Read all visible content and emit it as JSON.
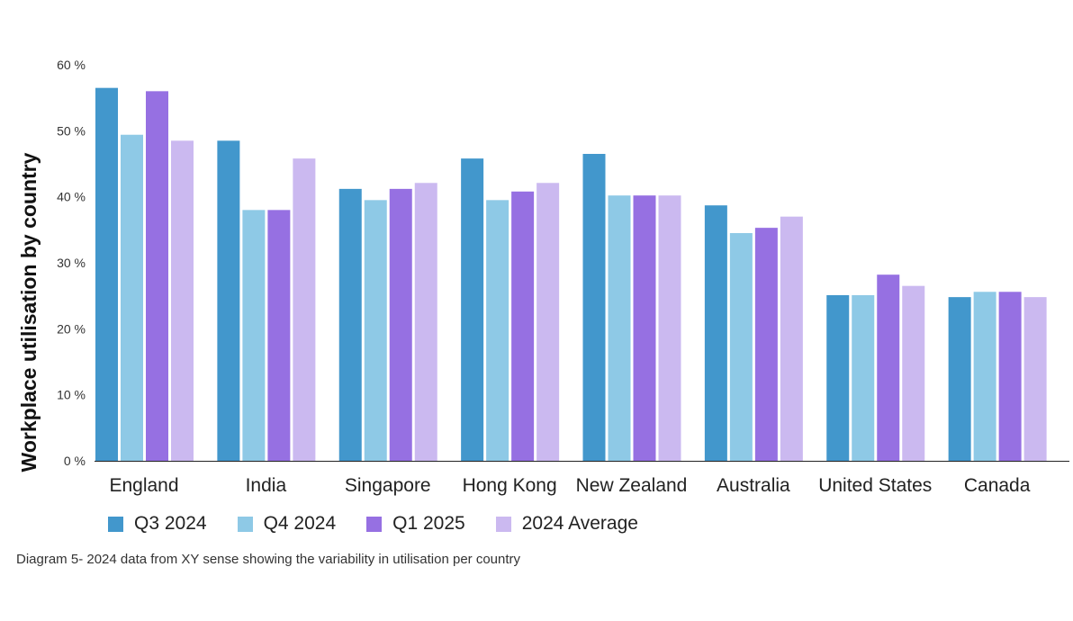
{
  "chart_data": {
    "type": "bar",
    "ylabel": "Workplace utilisation by country",
    "ylim": [
      0,
      60
    ],
    "yticks": [
      "0 %",
      "10 %",
      "20 %",
      "30 %",
      "40 %",
      "50 %",
      "60 %"
    ],
    "categories": [
      "England",
      "India",
      "Singapore",
      "Hong Kong",
      "New Zealand",
      "Australia",
      "United States",
      "Canada"
    ],
    "series": [
      {
        "name": "Q3 2024",
        "color": "#4297cc",
        "values": [
          56.5,
          48.5,
          41.2,
          45.8,
          46.5,
          38.7,
          25.1,
          24.8
        ]
      },
      {
        "name": "Q4 2024",
        "color": "#8ec9e6",
        "values": [
          49.4,
          38.0,
          39.5,
          39.5,
          40.2,
          34.5,
          25.1,
          25.6
        ]
      },
      {
        "name": "Q1 2025",
        "color": "#9670e2",
        "values": [
          56.0,
          38.0,
          41.2,
          40.8,
          40.2,
          35.3,
          28.2,
          25.6
        ]
      },
      {
        "name": "2024 Average",
        "color": "#cbb9f0",
        "values": [
          48.5,
          45.8,
          42.1,
          42.1,
          40.2,
          37.0,
          26.5,
          24.8
        ]
      }
    ],
    "grid": false,
    "legend_position": "bottom-left"
  },
  "caption": "Diagram 5- 2024 data from XY sense showing the variability in utilisation per country"
}
